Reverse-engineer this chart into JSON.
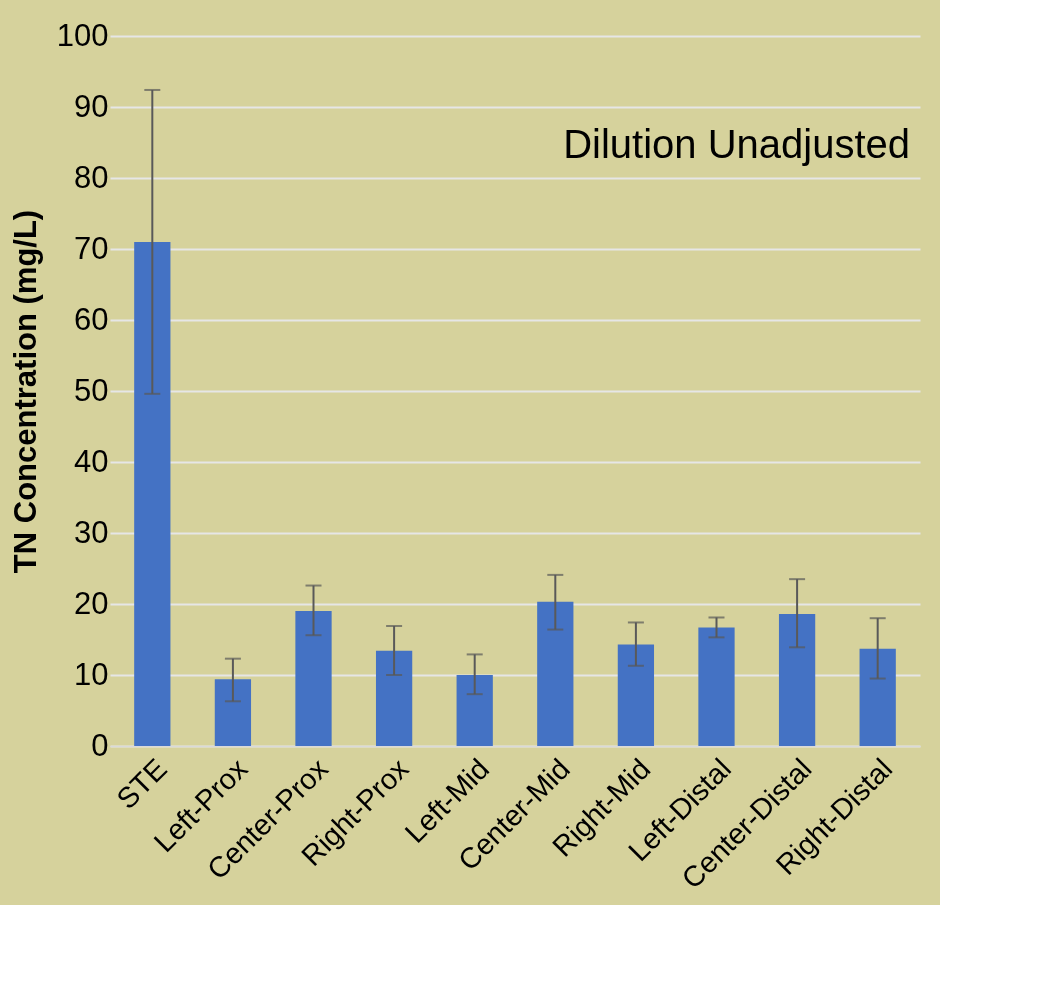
{
  "chart_data": {
    "type": "bar",
    "ylabel": "TN Concentration (mg/L)",
    "annotations": [
      "Dilution Unadjusted"
    ],
    "categories": [
      "STE",
      "Left-Prox",
      "Center-Prox",
      "Right-Prox",
      "Left-Mid",
      "Center-Mid",
      "Right-Mid",
      "Left-Distal",
      "Center-Distal",
      "Right-Distal"
    ],
    "values": [
      71.0,
      9.4,
      19.0,
      13.4,
      10.0,
      20.3,
      14.3,
      16.7,
      18.6,
      13.7
    ],
    "errors": [
      [
        49.6,
        92.4
      ],
      [
        6.3,
        12.3
      ],
      [
        15.6,
        22.6
      ],
      [
        10.0,
        16.9
      ],
      [
        7.3,
        12.9
      ],
      [
        16.4,
        24.1
      ],
      [
        11.3,
        17.4
      ],
      [
        15.3,
        18.1
      ],
      [
        13.9,
        23.5
      ],
      [
        9.5,
        18.0
      ]
    ],
    "color": "#4472c4",
    "ylim": [
      0,
      100
    ],
    "yticks": [
      0,
      10,
      20,
      30,
      40,
      50,
      60,
      70,
      80,
      90,
      100
    ],
    "grid": "y"
  }
}
